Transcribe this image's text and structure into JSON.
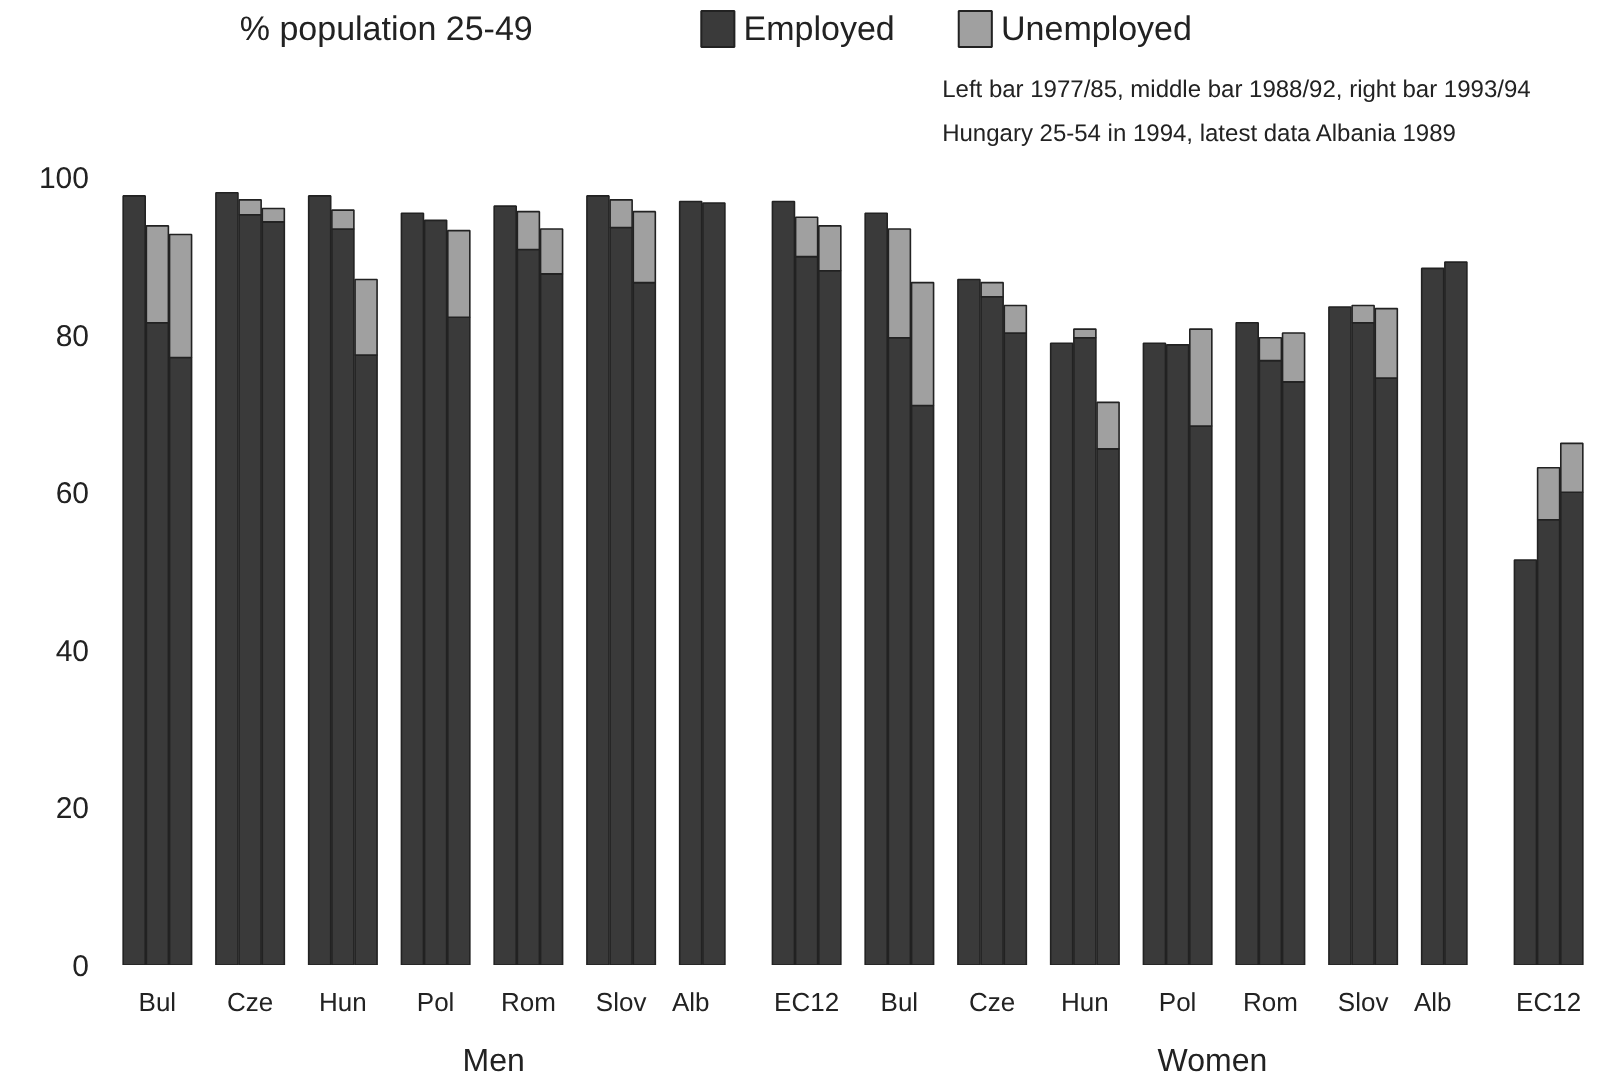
{
  "chart_data": {
    "type": "bar",
    "stacked": true,
    "ylabel": "% population 25-49",
    "categories": [
      null,
      "Bul",
      null,
      null,
      "Cze",
      null,
      null,
      "Hun",
      null,
      null,
      "Pol",
      null,
      null,
      "Rom",
      null,
      null,
      "Slov",
      null,
      "Alb",
      null,
      null,
      null,
      "EC12",
      null,
      null,
      "Bul",
      null,
      null,
      "Cze",
      null,
      null,
      "Hun",
      null,
      null,
      "Pol",
      null,
      null,
      "Rom",
      null,
      null,
      "Slov",
      null,
      "Alb",
      null,
      null,
      null,
      "EC12",
      null
    ],
    "series": [
      {
        "name": "Employed",
        "color": "#3a3a3a",
        "values": [
          97.6,
          81.5,
          77.1,
          98,
          95.2,
          94.3,
          97.6,
          93.4,
          77.4,
          95.4,
          94.5,
          82.2,
          96.3,
          90.8,
          87.7,
          97.6,
          93.6,
          86.6,
          96.9,
          96.7,
          null,
          96.9,
          89.9,
          88.1,
          95.4,
          79.6,
          71,
          87,
          84.8,
          80.2,
          78.9,
          79.6,
          65.5,
          78.9,
          78.7,
          68.4,
          81.5,
          76.7,
          74,
          83.5,
          81.5,
          74.5,
          88.4,
          89.2,
          null,
          51.4,
          56.5,
          60
        ]
      },
      {
        "name": "Unemployed",
        "color": "#a0a0a0",
        "values": [
          null,
          12.3,
          15.6,
          null,
          1.9,
          1.7,
          null,
          2.4,
          9.6,
          null,
          null,
          11.0,
          null,
          4.8,
          5.7,
          null,
          3.5,
          9.0,
          null,
          null,
          null,
          null,
          5.0,
          5.7,
          null,
          13.8,
          15.6,
          null,
          1.8,
          3.5,
          null,
          1.1,
          5.9,
          null,
          null,
          12.3,
          null,
          2.9,
          6.2,
          null,
          2.2,
          8.8,
          null,
          null,
          null,
          null,
          6.6,
          6.2
        ]
      }
    ],
    "ylim": [
      0,
      100
    ],
    "yticks": [
      0,
      20,
      40,
      60,
      80,
      100
    ],
    "legend": "top",
    "annotations": [
      "Left  bar 1977/85, middle bar 1988/92, right bar 1993/94",
      "Hungary 25-54 in 1994, latest data Albania 1989",
      "Men",
      "Women"
    ]
  }
}
